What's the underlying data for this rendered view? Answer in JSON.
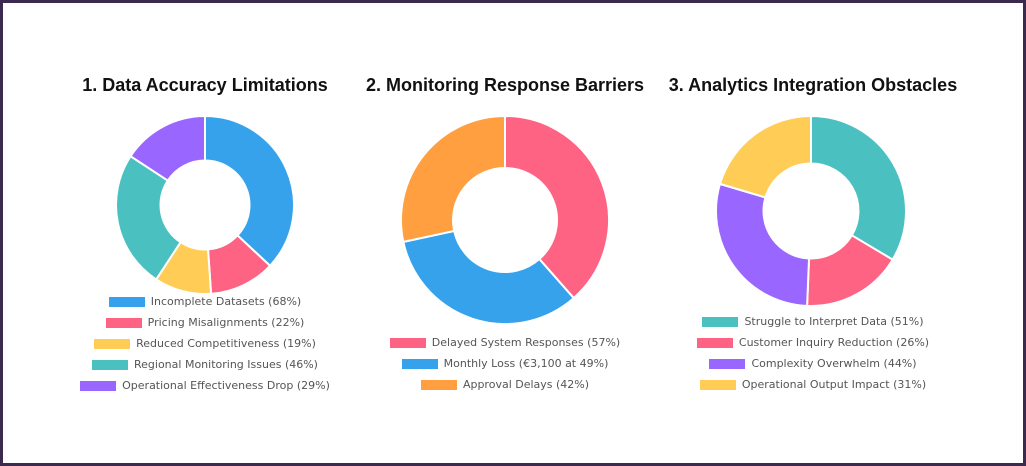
{
  "chart_data": [
    {
      "type": "pie",
      "title": "1. Data Accuracy Limitations",
      "categories": [
        "Incomplete Datasets (68%)",
        "Pricing Misalignments (22%)",
        "Reduced Competitiveness (19%)",
        "Regional Monitoring Issues (46%)",
        "Operational Effectiveness Drop (29%)"
      ],
      "values": [
        68,
        22,
        19,
        46,
        29
      ],
      "colors": [
        "#36a2eb",
        "#ff6384",
        "#ffcd56",
        "#4bc0c0",
        "#9966ff"
      ],
      "legend": "bottom"
    },
    {
      "type": "pie",
      "title": "2. Monitoring Response Barriers",
      "categories": [
        "Delayed System Responses (57%)",
        "Monthly Loss (€3,100 at 49%)",
        "Approval Delays (42%)"
      ],
      "values": [
        57,
        49,
        42
      ],
      "colors": [
        "#ff6384",
        "#36a2eb",
        "#ff9f40"
      ],
      "legend": "bottom"
    },
    {
      "type": "pie",
      "title": "3. Analytics Integration Obstacles",
      "categories": [
        "Struggle to Interpret Data (51%)",
        "Customer Inquiry Reduction (26%)",
        "Complexity Overwhelm (44%)",
        "Operational Output Impact (31%)"
      ],
      "values": [
        51,
        26,
        44,
        31
      ],
      "colors": [
        "#4bc0c0",
        "#ff6384",
        "#9966ff",
        "#ffcd56"
      ],
      "legend": "bottom"
    }
  ]
}
